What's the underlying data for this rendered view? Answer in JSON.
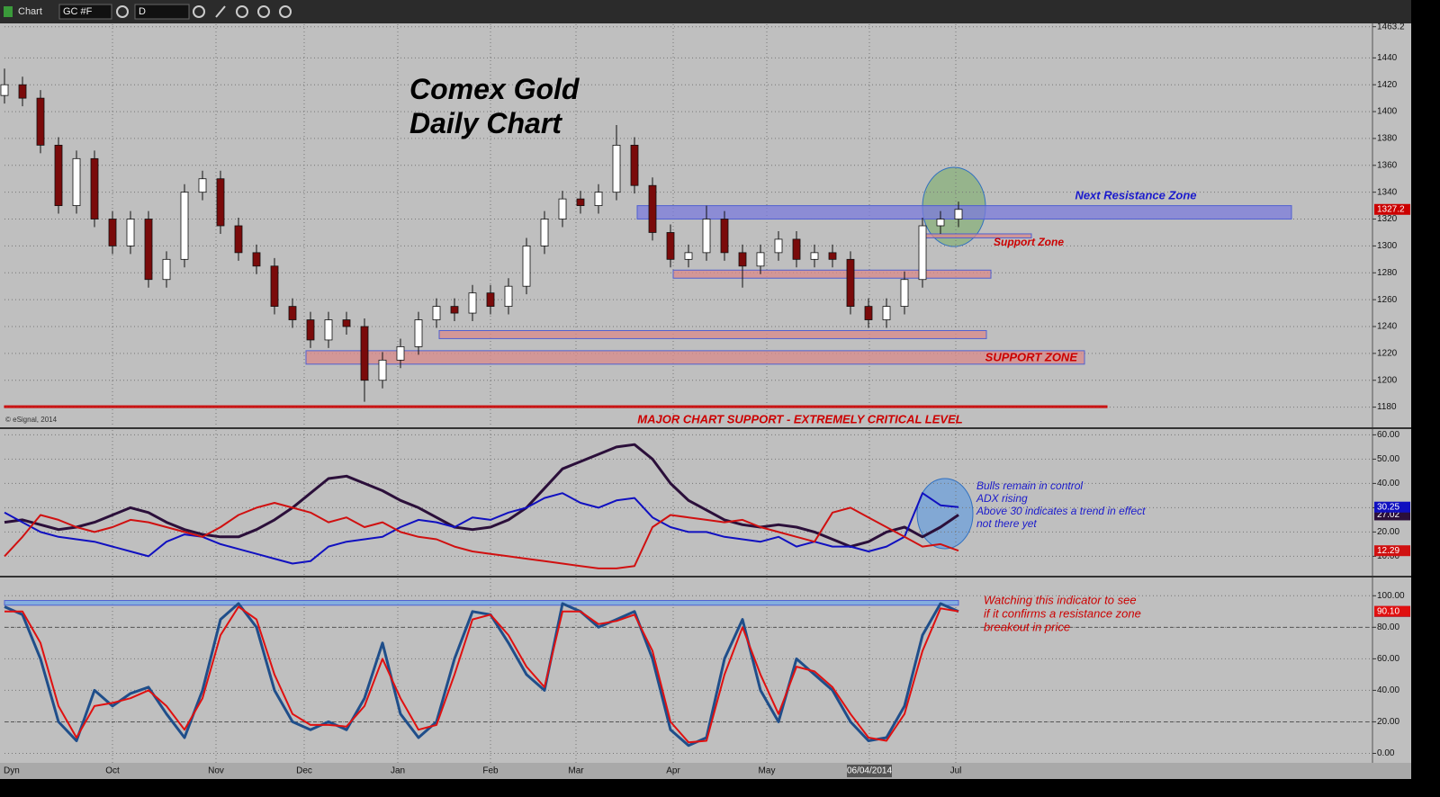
{
  "toolbar": {
    "title": "Chart",
    "symbol": "GC #F",
    "interval": "D"
  },
  "status": {
    "mode": "Dyn"
  },
  "chart_data": [
    {
      "type": "candlestick",
      "title": "Comex Gold Daily Chart",
      "source": "© eSignal, 2014",
      "xlim": [
        0,
        76
      ],
      "ylim": [
        1165,
        1465
      ],
      "yticks": [
        1180,
        1200,
        1220,
        1240,
        1260,
        1280,
        1300,
        1320,
        1340,
        1360,
        1380,
        1400,
        1420,
        1440,
        1463.2
      ],
      "open": [
        1412,
        1420,
        1410,
        1375,
        1330,
        1365,
        1320,
        1300,
        1320,
        1275,
        1290,
        1340,
        1350,
        1315,
        1295,
        1285,
        1255,
        1245,
        1230,
        1245,
        1240,
        1200,
        1215,
        1225,
        1245,
        1255,
        1250,
        1265,
        1255,
        1270,
        1300,
        1320,
        1335,
        1330,
        1340,
        1375,
        1345,
        1310,
        1290,
        1295,
        1320,
        1295,
        1285,
        1295,
        1305,
        1290,
        1295,
        1290,
        1255,
        1245,
        1255,
        1275,
        1315,
        1320
      ],
      "high": [
        1432,
        1426,
        1416,
        1381,
        1371,
        1371,
        1326,
        1326,
        1326,
        1296,
        1346,
        1356,
        1356,
        1321,
        1301,
        1291,
        1261,
        1251,
        1251,
        1251,
        1246,
        1221,
        1231,
        1251,
        1261,
        1261,
        1271,
        1271,
        1276,
        1306,
        1326,
        1341,
        1341,
        1346,
        1390,
        1381,
        1351,
        1316,
        1301,
        1330,
        1326,
        1301,
        1301,
        1311,
        1311,
        1301,
        1301,
        1296,
        1261,
        1261,
        1281,
        1321,
        1326,
        1333
      ],
      "low": [
        1406,
        1404,
        1369,
        1324,
        1324,
        1314,
        1294,
        1294,
        1269,
        1269,
        1284,
        1334,
        1309,
        1289,
        1279,
        1249,
        1239,
        1224,
        1224,
        1234,
        1184,
        1194,
        1209,
        1219,
        1239,
        1244,
        1244,
        1249,
        1249,
        1264,
        1294,
        1314,
        1324,
        1324,
        1334,
        1339,
        1304,
        1284,
        1284,
        1289,
        1289,
        1269,
        1279,
        1289,
        1284,
        1284,
        1284,
        1249,
        1239,
        1239,
        1249,
        1269,
        1309,
        1314
      ],
      "close": [
        1420,
        1410,
        1375,
        1330,
        1365,
        1320,
        1300,
        1320,
        1275,
        1290,
        1340,
        1350,
        1315,
        1295,
        1285,
        1255,
        1245,
        1230,
        1245,
        1240,
        1200,
        1215,
        1225,
        1245,
        1255,
        1250,
        1265,
        1255,
        1270,
        1300,
        1320,
        1335,
        1330,
        1340,
        1375,
        1345,
        1310,
        1290,
        1295,
        1320,
        1295,
        1285,
        1295,
        1305,
        1290,
        1295,
        1290,
        1255,
        1245,
        1255,
        1275,
        1315,
        1320,
        1327.2
      ],
      "up_color": "#ffffff",
      "down_color": "#7a0a0a",
      "last_color": "#cc0000",
      "zones": [
        {
          "label": "Next Resistance Zone",
          "x": [
            35.15,
            71.5
          ],
          "y": [
            1320,
            1330
          ],
          "color": "#7b7bdc",
          "label_color": "#1a1acc"
        },
        {
          "label": "Support Zone",
          "x": [
            51.1,
            57.05
          ],
          "y": [
            1306,
            1309
          ],
          "color": "#d98a8a",
          "label_color": "#cc0000"
        },
        {
          "x": [
            37.15,
            54.8
          ],
          "y": [
            1276,
            1282
          ],
          "color": "#d98a8a"
        },
        {
          "x": [
            24.15,
            54.55
          ],
          "y": [
            1231,
            1237
          ],
          "color": "#d98a8a"
        },
        {
          "label": "SUPPORT ZONE",
          "x": [
            16.75,
            60
          ],
          "y": [
            1212,
            1222
          ],
          "color": "#d98a8a",
          "label_color": "#cc0000"
        },
        {
          "label": "MAJOR CHART SUPPORT - EXTREMELY CRITICAL LEVEL",
          "x": [
            0,
            61.25
          ],
          "y": [
            1180,
            1181
          ],
          "color": "#cc0000",
          "label_color": "#cc0000"
        }
      ]
    },
    {
      "type": "line",
      "xlim": [
        0,
        76
      ],
      "ylim": [
        2,
        62
      ],
      "yticks": [
        {
          "value": 10,
          "label": "10.00"
        },
        {
          "value": 20,
          "label": "20.00"
        },
        {
          "value": 30,
          "label": "30.00"
        },
        {
          "value": 40,
          "label": "40.00"
        },
        {
          "value": 50,
          "label": "50.00"
        },
        {
          "value": 60,
          "label": "60.00"
        }
      ],
      "series": [
        {
          "color": "#2b0f3a",
          "values": [
            24,
            25,
            23,
            21,
            22,
            24,
            27,
            30,
            28,
            24,
            21,
            19,
            18,
            18,
            21,
            25,
            30,
            36,
            42,
            43,
            40,
            37,
            33,
            30,
            26,
            22,
            21,
            22,
            25,
            30,
            38,
            46,
            49,
            52,
            55,
            56,
            50,
            40,
            33,
            29,
            25,
            23,
            22,
            23,
            22,
            20,
            17,
            14,
            16,
            20,
            22,
            18,
            22,
            27.02
          ]
        },
        {
          "color": "#1010c0",
          "values": [
            28,
            24,
            20,
            18,
            17,
            16,
            14,
            12,
            10,
            16,
            19,
            18,
            15,
            13,
            11,
            9,
            7,
            8,
            14,
            16,
            17,
            18,
            22,
            25,
            24,
            22,
            26,
            25,
            28,
            30,
            34,
            36,
            32,
            30,
            33,
            34,
            26,
            22,
            20,
            20,
            18,
            17,
            16,
            18,
            14,
            16,
            14,
            14,
            12,
            14,
            18,
            36,
            31,
            30.25
          ]
        },
        {
          "color": "#d01010",
          "values": [
            10,
            18,
            27,
            25,
            22,
            20,
            22,
            25,
            24,
            22,
            20,
            18,
            22,
            27,
            30,
            32,
            30,
            28,
            24,
            26,
            22,
            24,
            20,
            18,
            17,
            14,
            12,
            11,
            10,
            9,
            8,
            7,
            6,
            5,
            5,
            6,
            22,
            27,
            26,
            25,
            24,
            25,
            22,
            20,
            18,
            16,
            28,
            30,
            26,
            22,
            18,
            14,
            15,
            12.29
          ]
        }
      ],
      "note": [
        "Bulls remain in control",
        "ADX rising",
        "Above 30 indicates a trend in effect",
        "not there yet"
      ],
      "note_color": "#1a1acc"
    },
    {
      "type": "line",
      "xlim": [
        0,
        76
      ],
      "ylim": [
        -6,
        111
      ],
      "yticks": [
        {
          "value": 0,
          "label": "0.00"
        },
        {
          "value": 20,
          "label": "20.00"
        },
        {
          "value": 40,
          "label": "40.00"
        },
        {
          "value": 60,
          "label": "60.00"
        },
        {
          "value": 80,
          "label": "80.00"
        },
        {
          "value": 100,
          "label": "100.00"
        }
      ],
      "xticks": [
        {
          "value": 6,
          "label": "Oct"
        },
        {
          "value": 11.75,
          "label": "Nov"
        },
        {
          "value": 16.65,
          "label": "Dec"
        },
        {
          "value": 21.85,
          "label": "Jan"
        },
        {
          "value": 27,
          "label": "Feb"
        },
        {
          "value": 31.75,
          "label": "Mar"
        },
        {
          "value": 37.15,
          "label": "Apr"
        },
        {
          "value": 42.35,
          "label": "May"
        },
        {
          "value": 48.05,
          "label": "06/04/2014"
        },
        {
          "value": 52.85,
          "label": "Jul"
        }
      ],
      "ref_lines": [
        80,
        20
      ],
      "series": [
        {
          "color": "#1f4e8a",
          "values": [
            93,
            88,
            60,
            20,
            8,
            40,
            30,
            38,
            42,
            25,
            10,
            40,
            85,
            95,
            80,
            40,
            20,
            15,
            20,
            15,
            35,
            70,
            25,
            10,
            20,
            60,
            90,
            88,
            70,
            50,
            40,
            95,
            90,
            80,
            85,
            90,
            60,
            15,
            5,
            10,
            60,
            85,
            40,
            20,
            60,
            50,
            40,
            20,
            8,
            10,
            30,
            75,
            95,
            90
          ]
        },
        {
          "color": "#e01010",
          "values": [
            90,
            90,
            70,
            30,
            10,
            30,
            32,
            35,
            40,
            30,
            15,
            35,
            75,
            93,
            85,
            50,
            25,
            18,
            18,
            17,
            30,
            60,
            35,
            15,
            18,
            50,
            85,
            88,
            75,
            55,
            42,
            90,
            90,
            82,
            84,
            88,
            65,
            20,
            7,
            8,
            50,
            80,
            50,
            25,
            55,
            52,
            42,
            25,
            10,
            8,
            25,
            65,
            92,
            90.1
          ],
          "value_labels": [
            null,
            null,
            null,
            null,
            null,
            null,
            null,
            null,
            null,
            null,
            null,
            null,
            null,
            null,
            null,
            null,
            null,
            null,
            null,
            null,
            null,
            null,
            null,
            null,
            null,
            null,
            null,
            null,
            null,
            null,
            null,
            null,
            null,
            null,
            null,
            null,
            null,
            null,
            null,
            null,
            null,
            null,
            null,
            null,
            null,
            null,
            null,
            null,
            null,
            null,
            null,
            null,
            null,
            "90.10"
          ]
        }
      ],
      "zones": [
        {
          "x": [
            0,
            53.0
          ],
          "y": [
            94,
            97
          ],
          "color": "#6fa8e8"
        }
      ],
      "note": [
        "Watching this indicator to see",
        "if it confirms a resistance zone",
        "breakout in price"
      ],
      "note_color": "#cc0000"
    }
  ]
}
